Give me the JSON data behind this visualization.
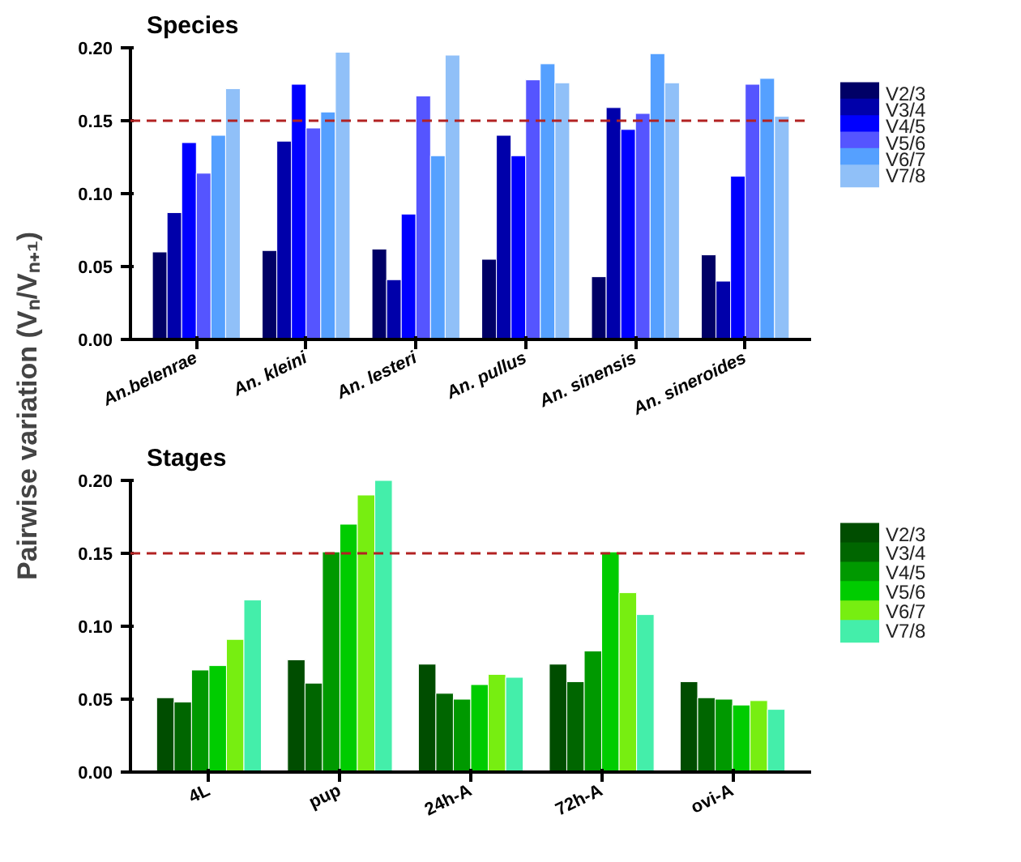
{
  "chart_data": [
    {
      "type": "bar",
      "title": "Species",
      "ylabel": "Pairwise variation (Vₙ/Vₙ₊₁)",
      "categories": [
        "An.belenrae",
        "An. kleini",
        "An. lesteri",
        "An. pullus",
        "An. sinensis",
        "An. sineroides"
      ],
      "series": [
        {
          "name": "V2/3",
          "color": "#000066",
          "values": [
            0.06,
            0.061,
            0.062,
            0.055,
            0.043,
            0.058
          ]
        },
        {
          "name": "V3/4",
          "color": "#0000aa",
          "values": [
            0.087,
            0.136,
            0.041,
            0.14,
            0.159,
            0.04
          ]
        },
        {
          "name": "V4/5",
          "color": "#0000ff",
          "values": [
            0.135,
            0.175,
            0.086,
            0.126,
            0.144,
            0.112
          ]
        },
        {
          "name": "V5/6",
          "color": "#5555ff",
          "values": [
            0.114,
            0.145,
            0.167,
            0.178,
            0.155,
            0.175
          ]
        },
        {
          "name": "V6/7",
          "color": "#55a0ff",
          "values": [
            0.14,
            0.156,
            0.126,
            0.189,
            0.196,
            0.179
          ]
        },
        {
          "name": "V7/8",
          "color": "#90c0f8",
          "values": [
            0.172,
            0.197,
            0.195,
            0.176,
            0.176,
            0.153
          ]
        }
      ],
      "ylim": [
        0,
        0.2
      ],
      "yticks": [
        {
          "value": 0,
          "label": "0.00"
        },
        {
          "value": 0.05,
          "label": "0.05"
        },
        {
          "value": 0.1,
          "label": "0.10"
        },
        {
          "value": 0.15,
          "label": "0.15"
        },
        {
          "value": 0.2,
          "label": "0.20"
        }
      ],
      "ref_lines": [
        {
          "axis": "y",
          "value": 0.15,
          "color": "#b22222",
          "line_style": "dashed"
        }
      ],
      "legend": "right",
      "grid": false
    },
    {
      "type": "bar",
      "title": "Stages",
      "categories": [
        "4L",
        "pup",
        "24h-A",
        "72h-A",
        "ovi-A"
      ],
      "series": [
        {
          "name": "V2/3",
          "color": "#004d00",
          "values": [
            0.051,
            0.077,
            0.074,
            0.074,
            0.062
          ]
        },
        {
          "name": "V3/4",
          "color": "#006600",
          "values": [
            0.048,
            0.061,
            0.054,
            0.062,
            0.051
          ]
        },
        {
          "name": "V4/5",
          "color": "#009900",
          "values": [
            0.07,
            0.151,
            0.05,
            0.083,
            0.05
          ]
        },
        {
          "name": "V5/6",
          "color": "#00cc00",
          "values": [
            0.073,
            0.17,
            0.06,
            0.151,
            0.046
          ]
        },
        {
          "name": "V6/7",
          "color": "#77ee11",
          "values": [
            0.091,
            0.19,
            0.067,
            0.123,
            0.049
          ]
        },
        {
          "name": "V7/8",
          "color": "#44eeaa",
          "values": [
            0.118,
            0.2,
            0.065,
            0.108,
            0.043
          ]
        }
      ],
      "ylim": [
        0,
        0.2
      ],
      "yticks": [
        {
          "value": 0,
          "label": "0.00"
        },
        {
          "value": 0.05,
          "label": "0.05"
        },
        {
          "value": 0.1,
          "label": "0.10"
        },
        {
          "value": 0.15,
          "label": "0.15"
        },
        {
          "value": 0.2,
          "label": "0.20"
        }
      ],
      "ref_lines": [
        {
          "axis": "y",
          "value": 0.15,
          "color": "#b22222",
          "line_style": "dashed"
        }
      ],
      "legend": "right",
      "grid": false
    }
  ]
}
